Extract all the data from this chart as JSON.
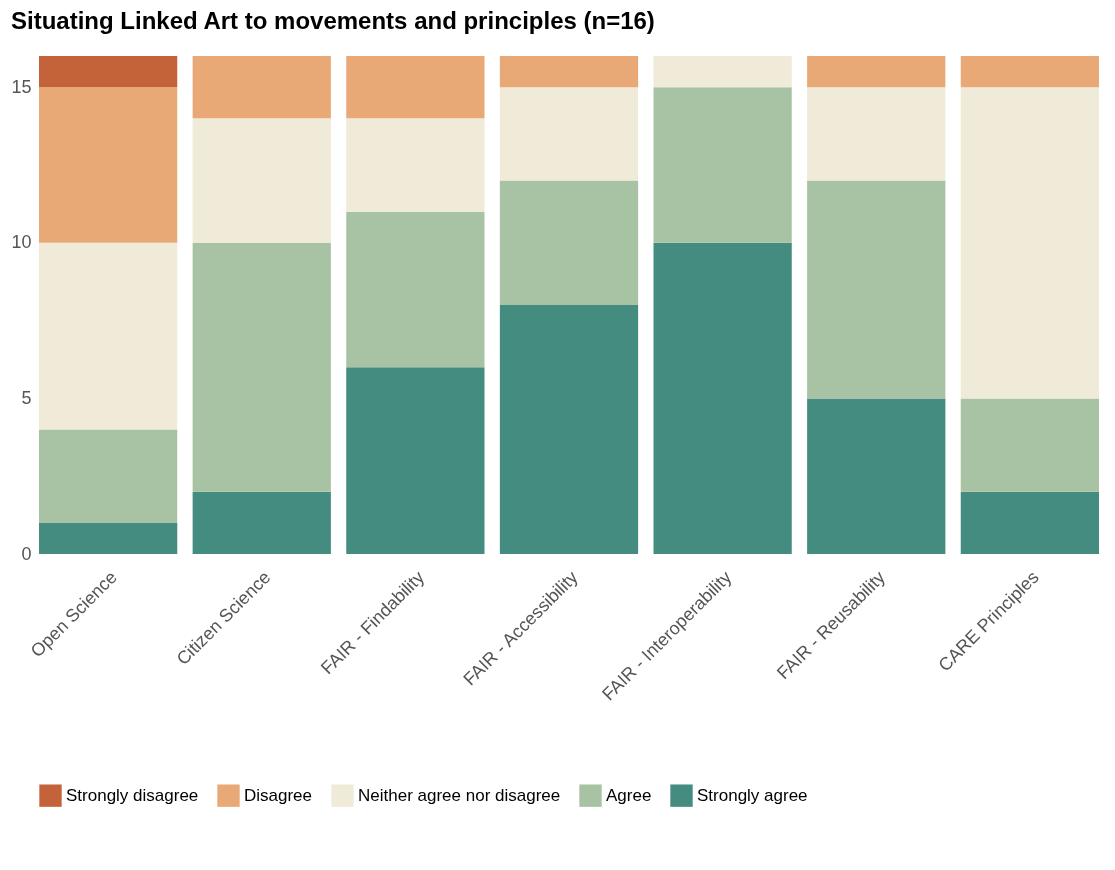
{
  "chart_data": {
    "type": "bar",
    "title": "Situating Linked Art to movements and principles (n=16)",
    "stacked": true,
    "categories": [
      "Open Science",
      "Citizen Science",
      "FAIR - Findability",
      "FAIR - Accessibility",
      "FAIR - Interoperability",
      "FAIR - Reusability",
      "CARE Principles"
    ],
    "series": [
      {
        "name": "Strongly agree",
        "color": "#448c80",
        "values": [
          1,
          2,
          6,
          8,
          10,
          5,
          2
        ]
      },
      {
        "name": "Agree",
        "color": "#a8c3a3",
        "values": [
          3,
          8,
          5,
          4,
          5,
          7,
          3
        ]
      },
      {
        "name": "Neither agree nor disagree",
        "color": "#f0ead8",
        "values": [
          6,
          4,
          3,
          3,
          1,
          3,
          10
        ]
      },
      {
        "name": "Disagree",
        "color": "#e8a976",
        "values": [
          5,
          2,
          2,
          1,
          null,
          1,
          1
        ]
      },
      {
        "name": "Strongly disagree",
        "color": "#c4623a",
        "values": [
          1,
          null,
          null,
          null,
          null,
          null,
          null
        ]
      }
    ],
    "ylim": [
      0,
      16
    ],
    "yticks": [
      0,
      5,
      10,
      15
    ],
    "grid": false,
    "legend": "bottom"
  }
}
